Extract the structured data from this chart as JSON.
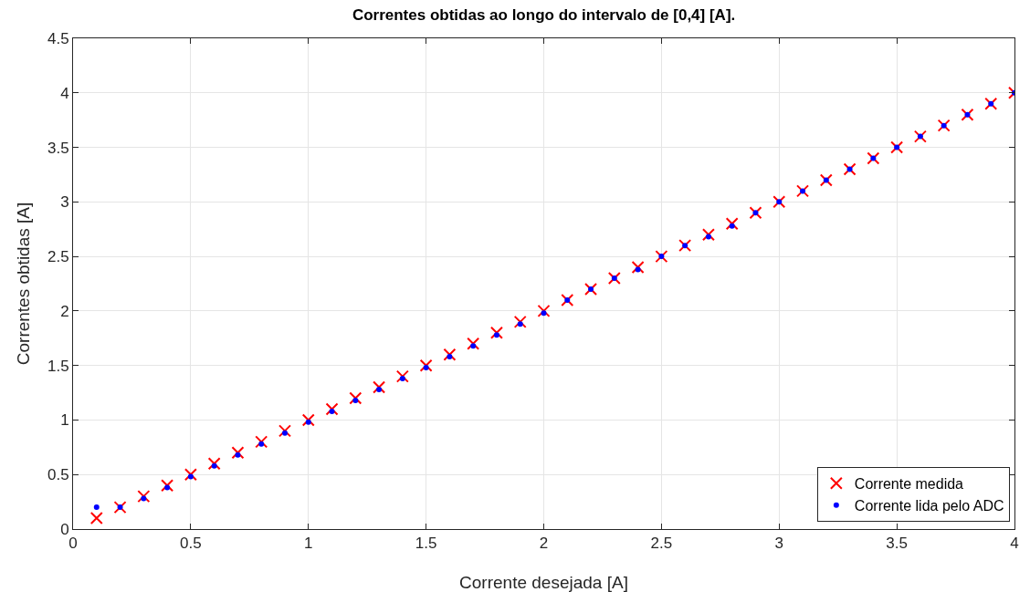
{
  "chart_data": {
    "type": "scatter",
    "title": "Correntes obtidas ao longo do intervalo de [0,4] [A].",
    "xlabel": "Corrente desejada [A]",
    "ylabel": "Correntes obtidas [A]",
    "x": [
      0.1,
      0.2,
      0.3,
      0.4,
      0.5,
      0.6,
      0.7,
      0.8,
      0.9,
      1.0,
      1.1,
      1.2,
      1.3,
      1.4,
      1.5,
      1.6,
      1.7,
      1.8,
      1.9,
      2.0,
      2.1,
      2.2,
      2.3,
      2.4,
      2.5,
      2.6,
      2.7,
      2.8,
      2.9,
      3.0,
      3.1,
      3.2,
      3.3,
      3.4,
      3.5,
      3.6,
      3.7,
      3.8,
      3.9,
      4.0
    ],
    "series": [
      {
        "name": "Corrente medida",
        "color": "#ff0000",
        "marker": "cross",
        "values": [
          0.1,
          0.2,
          0.3,
          0.4,
          0.5,
          0.6,
          0.7,
          0.8,
          0.9,
          1.0,
          1.1,
          1.2,
          1.3,
          1.4,
          1.5,
          1.6,
          1.7,
          1.8,
          1.9,
          2.0,
          2.1,
          2.2,
          2.3,
          2.4,
          2.5,
          2.6,
          2.7,
          2.8,
          2.9,
          3.0,
          3.1,
          3.2,
          3.3,
          3.4,
          3.5,
          3.6,
          3.7,
          3.8,
          3.9,
          4.0
        ]
      },
      {
        "name": "Corrente lida pelo ADC",
        "color": "#0000ff",
        "marker": "circle",
        "values": [
          0.2,
          0.2,
          0.28,
          0.38,
          0.48,
          0.58,
          0.68,
          0.78,
          0.88,
          0.98,
          1.08,
          1.18,
          1.28,
          1.38,
          1.48,
          1.58,
          1.68,
          1.78,
          1.88,
          1.98,
          2.1,
          2.2,
          2.3,
          2.38,
          2.5,
          2.6,
          2.68,
          2.78,
          2.9,
          3.0,
          3.1,
          3.2,
          3.3,
          3.4,
          3.5,
          3.6,
          3.7,
          3.8,
          3.9,
          4.0
        ]
      }
    ],
    "xlim": [
      0,
      4
    ],
    "xticks": [
      0,
      0.5,
      1,
      1.5,
      2,
      2.5,
      3,
      3.5,
      4
    ],
    "ylim": [
      0,
      4.5
    ],
    "yticks": [
      0,
      0.5,
      1,
      1.5,
      2,
      2.5,
      3,
      3.5,
      4,
      4.5
    ],
    "grid": true,
    "legend": "bottom right",
    "line_style": "none"
  }
}
